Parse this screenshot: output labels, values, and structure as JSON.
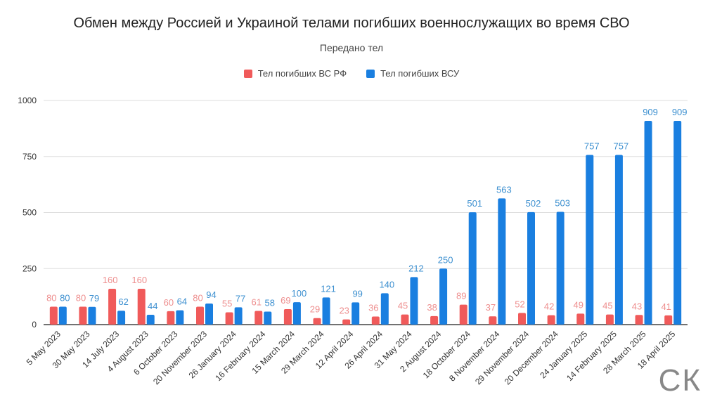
{
  "chart_data": {
    "type": "bar",
    "title": "Обмен между Россией и Украиной телами погибших военнослужащих во время СВО",
    "subtitle": "Передано тел",
    "categories": [
      "5 May 2023",
      "30 May 2023",
      "14 July 2023",
      "4 August 2023",
      "6 October 2023",
      "20 November 2023",
      "26 January 2024",
      "16 February 2024",
      "15 March 2024",
      "29 March 2024",
      "12 April 2024",
      "26 April 2024",
      "31 May 2024",
      "2 August 2024",
      "18 October 2024",
      "8 November 2024",
      "29 November 2024",
      "20 December 2024",
      "24 January 2025",
      "14 February 2025",
      "28 March 2025",
      "18 April 2025"
    ],
    "series": [
      {
        "name": "Тел погибших ВС  РФ",
        "color": "#f05a5a",
        "label_color": "#ee8f8f",
        "values": [
          80,
          80,
          160,
          160,
          60,
          80,
          55,
          61,
          69,
          29,
          23,
          36,
          45,
          38,
          89,
          37,
          52,
          42,
          49,
          45,
          43,
          41
        ]
      },
      {
        "name": "Тел погибших ВСУ",
        "color": "#1a7fe0",
        "label_color": "#3d90d0",
        "values": [
          80,
          79,
          62,
          44,
          64,
          94,
          77,
          58,
          100,
          121,
          99,
          140,
          212,
          250,
          501,
          563,
          502,
          503,
          757,
          757,
          909,
          909
        ]
      }
    ],
    "yticks": [
      0,
      250,
      500,
      750,
      1000
    ],
    "ylim": [
      0,
      1000
    ],
    "grid": true,
    "legend_position": "top"
  },
  "logo_text": "СК"
}
